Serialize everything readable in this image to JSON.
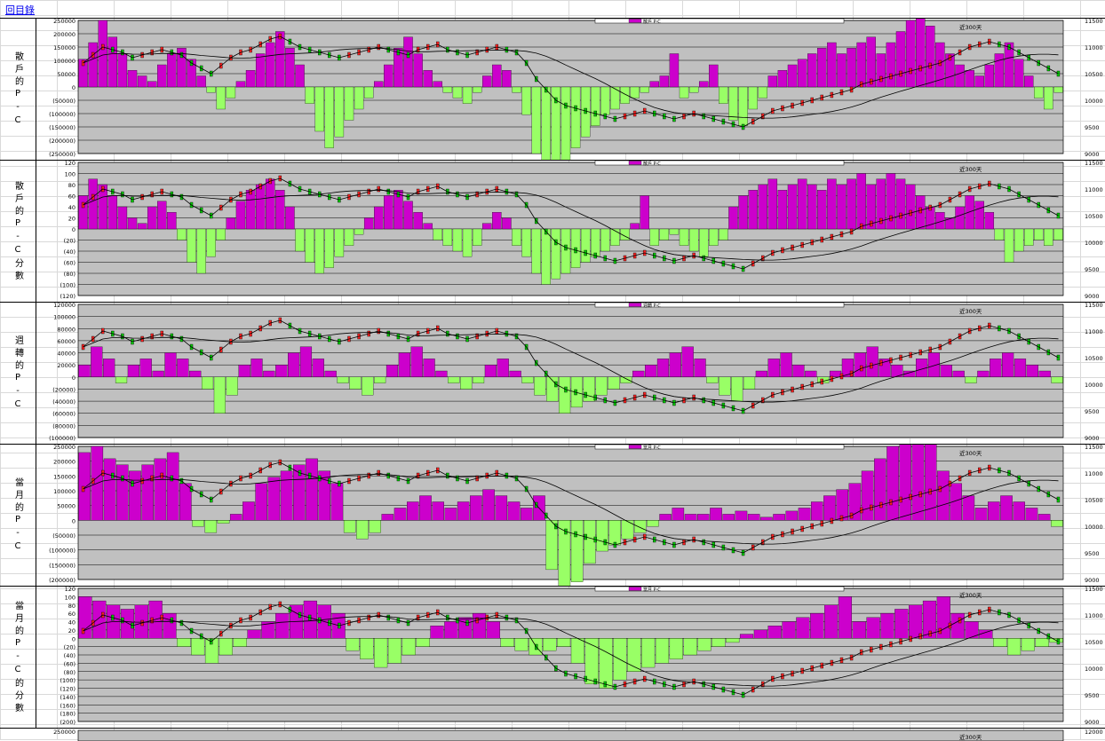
{
  "back_link": "回目錄",
  "colors": {
    "plot_bg": "#c0c0c0",
    "positive": "#cc00cc",
    "negative": "#99ff66",
    "candle_up": "#ff2222",
    "candle_down": "#00cc00",
    "line": "#000000"
  },
  "panels": [
    {
      "label": "散戶的P-C",
      "ticks_left": [
        "250000",
        "200000",
        "150000",
        "100000",
        "50000",
        "0",
        "(50000)",
        "(100000)",
        "(150000)",
        "(200000)",
        "(250000)"
      ],
      "ylim": [
        -250000,
        250000
      ],
      "ticks_right": [
        "11500",
        "11000",
        "10500",
        "10000",
        "9500",
        "9000"
      ],
      "annotation": "近300天",
      "legend": [
        "散戶 P-C"
      ]
    },
    {
      "label": "散戶的P-C分數",
      "ticks_left": [
        "120",
        "100",
        "80",
        "60",
        "40",
        "20",
        "0",
        "(20)",
        "(40)",
        "(60)",
        "(80)",
        "(100)",
        "(120)"
      ],
      "ylim": [
        -120,
        120
      ],
      "ticks_right": [
        "11500",
        "11000",
        "10500",
        "10000",
        "9500",
        "9000"
      ],
      "annotation": "近300天",
      "legend": [
        "散戶 P-C"
      ]
    },
    {
      "label": "週轉的P-C",
      "ticks_left": [
        "120000",
        "100000",
        "80000",
        "60000",
        "40000",
        "20000",
        "0",
        "(20000)",
        "(40000)",
        "(60000)",
        "(80000)",
        "(100000)"
      ],
      "ylim": [
        -100000,
        120000
      ],
      "ticks_right": [
        "11500",
        "11000",
        "10500",
        "10000",
        "9500",
        "9000"
      ],
      "annotation": "近300天",
      "legend": [
        "週轉 P-C"
      ]
    },
    {
      "label": "當月的P-C",
      "ticks_left": [
        "250000",
        "200000",
        "150000",
        "100000",
        "50000",
        "0",
        "(50000)",
        "(100000)",
        "(150000)",
        "(200000)"
      ],
      "ylim": [
        -200000,
        250000
      ],
      "ticks_right": [
        "11500",
        "11000",
        "10500",
        "10000",
        "9500",
        "9000"
      ],
      "annotation": "近300天",
      "legend": [
        "當月 P-C"
      ]
    },
    {
      "label": "當月的P-C的分數",
      "ticks_left": [
        "120",
        "100",
        "80",
        "60",
        "40",
        "20",
        "0",
        "(20)",
        "(40)",
        "(60)",
        "(80)",
        "(100)",
        "(120)",
        "(140)",
        "(160)",
        "(180)",
        "(200)"
      ],
      "ylim": [
        -200,
        120
      ],
      "ticks_right": [
        "11500",
        "11000",
        "10500",
        "10000",
        "9500",
        "9000"
      ],
      "annotation": "近300天",
      "legend": [
        "當月 P-C"
      ]
    }
  ],
  "bottom_tick_left": "250000",
  "bottom_tick_right": "12000",
  "bottom_annotation": "近300天",
  "chart_data": {
    "type": "bar",
    "description_x": "trading days (last 300)",
    "series_count": 5,
    "index_right_axis": [
      9000,
      11500
    ],
    "index_series": [
      10700,
      10850,
      11000,
      10950,
      10900,
      10800,
      10850,
      10900,
      10950,
      10900,
      10850,
      10700,
      10600,
      10500,
      10650,
      10800,
      10900,
      10950,
      11050,
      11150,
      11200,
      11100,
      11000,
      10950,
      10900,
      10850,
      10800,
      10850,
      10900,
      10950,
      11000,
      10950,
      10900,
      10850,
      10950,
      11000,
      11050,
      10950,
      10900,
      10850,
      10900,
      10950,
      11000,
      10950,
      10900,
      10700,
      10400,
      10200,
      10000,
      9900,
      9850,
      9800,
      9750,
      9700,
      9650,
      9700,
      9750,
      9800,
      9750,
      9700,
      9650,
      9700,
      9750,
      9700,
      9650,
      9600,
      9550,
      9500,
      9600,
      9700,
      9800,
      9850,
      9900,
      9950,
      10000,
      10050,
      10100,
      10150,
      10200,
      10300,
      10350,
      10400,
      10450,
      10500,
      10550,
      10600,
      10650,
      10700,
      10800,
      10900,
      11000,
      11050,
      11100,
      11050,
      11000,
      10900,
      10800,
      10700,
      10600,
      10500
    ],
    "panel_values": [
      [
        50,
        80,
        120,
        90,
        60,
        30,
        20,
        10,
        40,
        60,
        70,
        50,
        20,
        -10,
        -40,
        -20,
        10,
        30,
        60,
        80,
        100,
        70,
        40,
        -30,
        -80,
        -110,
        -90,
        -60,
        -40,
        -20,
        10,
        40,
        70,
        90,
        60,
        30,
        10,
        -10,
        -20,
        -30,
        -10,
        20,
        40,
        30,
        -10,
        -50,
        -120,
        -200,
        -180,
        -140,
        -110,
        -90,
        -70,
        -50,
        -40,
        -30,
        -20,
        -10,
        10,
        20,
        60,
        -20,
        -10,
        10,
        40,
        -30,
        -60,
        -70,
        -40,
        -20,
        20,
        30,
        40,
        50,
        60,
        70,
        80,
        60,
        70,
        80,
        90,
        60,
        80,
        100,
        120,
        140,
        110,
        80,
        60,
        40,
        30,
        20,
        40,
        60,
        80,
        50,
        20,
        -20,
        -40,
        -10
      ],
      [
        60,
        90,
        80,
        60,
        40,
        20,
        10,
        40,
        50,
        30,
        -20,
        -60,
        -80,
        -50,
        -20,
        20,
        50,
        70,
        80,
        90,
        70,
        40,
        -40,
        -60,
        -80,
        -70,
        -50,
        -30,
        -10,
        20,
        40,
        60,
        70,
        50,
        30,
        10,
        -20,
        -30,
        -40,
        -50,
        -30,
        10,
        30,
        20,
        -30,
        -50,
        -80,
        -100,
        -90,
        -80,
        -70,
        -60,
        -50,
        -40,
        -30,
        -20,
        10,
        60,
        -30,
        -20,
        -10,
        -30,
        -40,
        -50,
        -30,
        -20,
        40,
        60,
        70,
        80,
        90,
        70,
        80,
        90,
        80,
        70,
        90,
        80,
        90,
        100,
        80,
        90,
        100,
        90,
        80,
        60,
        40,
        30,
        20,
        40,
        60,
        50,
        30,
        -20,
        -60,
        -40,
        -30,
        -20,
        -30,
        -20
      ],
      [
        20,
        50,
        30,
        -10,
        20,
        30,
        10,
        40,
        30,
        10,
        -20,
        -60,
        -30,
        20,
        30,
        10,
        20,
        40,
        50,
        30,
        10,
        -10,
        -20,
        -30,
        -10,
        20,
        40,
        50,
        30,
        10,
        -10,
        -20,
        -10,
        20,
        30,
        10,
        -10,
        -30,
        -40,
        -60,
        -50,
        -40,
        -30,
        -20,
        -10,
        10,
        20,
        30,
        40,
        50,
        30,
        -10,
        -30,
        -40,
        -20,
        10,
        30,
        40,
        20,
        10,
        -10,
        10,
        30,
        40,
        50,
        30,
        20,
        10,
        30,
        40,
        20,
        10,
        -10,
        10,
        30,
        40,
        30,
        20,
        10,
        -10
      ],
      [
        110,
        120,
        100,
        90,
        80,
        90,
        100,
        110,
        60,
        -10,
        -20,
        -5,
        10,
        30,
        60,
        70,
        80,
        90,
        100,
        80,
        60,
        -20,
        -30,
        -20,
        10,
        20,
        30,
        40,
        30,
        20,
        30,
        40,
        50,
        40,
        30,
        20,
        40,
        -80,
        -130,
        -100,
        -70,
        -50,
        -40,
        -30,
        -20,
        -10,
        10,
        20,
        10,
        10,
        20,
        10,
        15,
        10,
        5,
        10,
        15,
        20,
        30,
        40,
        50,
        60,
        80,
        100,
        120,
        140,
        160,
        150,
        80,
        60,
        40,
        20,
        30,
        40,
        30,
        20,
        10,
        -10
      ],
      [
        100,
        90,
        80,
        70,
        80,
        90,
        60,
        -20,
        -40,
        -60,
        -40,
        -20,
        20,
        40,
        60,
        80,
        90,
        80,
        60,
        -30,
        -50,
        -70,
        -60,
        -40,
        -20,
        30,
        40,
        50,
        60,
        40,
        -20,
        -30,
        -40,
        -30,
        -20,
        -60,
        -110,
        -120,
        -100,
        -80,
        -70,
        -60,
        -50,
        -40,
        -30,
        -20,
        -10,
        10,
        20,
        30,
        40,
        50,
        60,
        80,
        100,
        40,
        50,
        60,
        70,
        80,
        90,
        100,
        60,
        40,
        20,
        -20,
        -40,
        -30,
        -20,
        -10
      ]
    ]
  }
}
